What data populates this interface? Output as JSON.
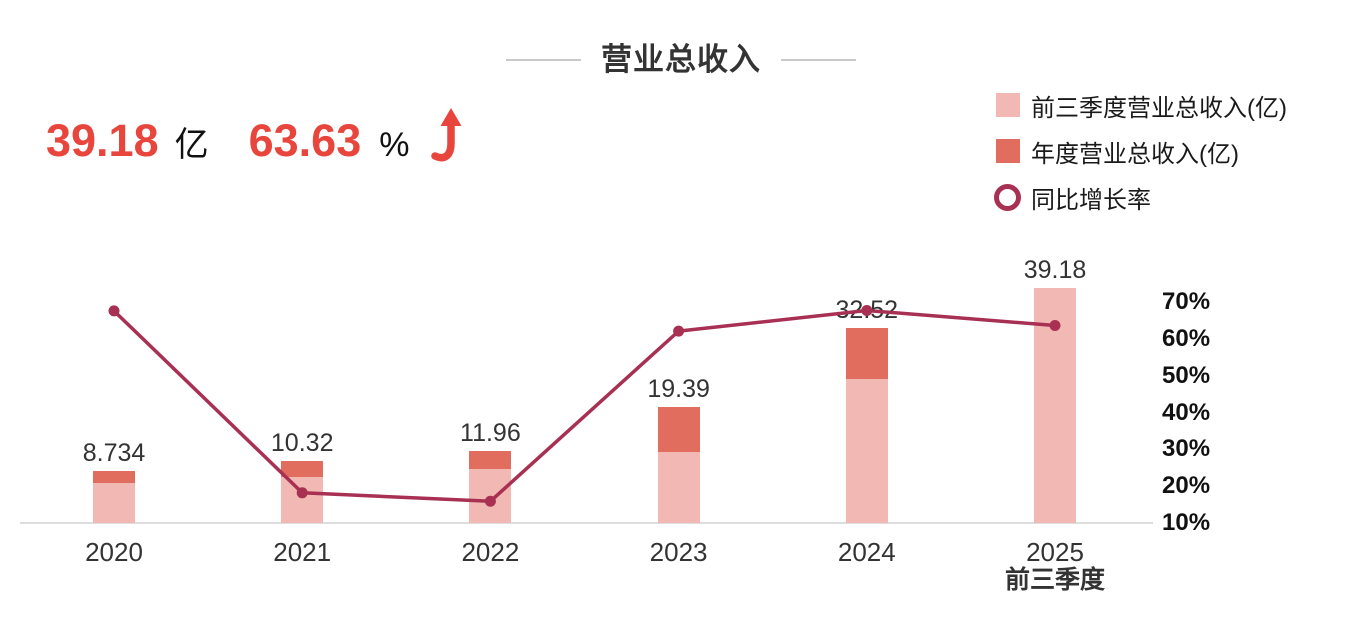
{
  "header": {
    "title": "营业总收入"
  },
  "kpi": {
    "revenue_value": "39.18",
    "revenue_unit": "亿",
    "growth_value": "63.63",
    "growth_unit": "%",
    "trend_icon": "up-arrow"
  },
  "legend": [
    {
      "label": "前三季度营业总收入(亿)",
      "marker": "square",
      "color": "#F2B8B3"
    },
    {
      "label": "年度营业总收入(亿)",
      "marker": "square",
      "color": "#E06D5E"
    },
    {
      "label": "同比增长率",
      "marker": "ring",
      "color": "#A83053"
    }
  ],
  "chart_data": {
    "type": "bar",
    "subtype": "stacked-bars-with-growth-line",
    "title": "营业总收入",
    "categories": [
      "2020",
      "2021",
      "2022",
      "2023",
      "2024",
      "2025"
    ],
    "category_sublabels": [
      "",
      "",
      "",
      "",
      "",
      "前三季度"
    ],
    "bar_value_labels": [
      "8.734",
      "10.32",
      "11.96",
      "19.39",
      "32.52",
      "39.18"
    ],
    "series": [
      {
        "name": "前三季度营业总收入(亿)",
        "type": "bar",
        "color": "#F2B8B3",
        "values": [
          6.67,
          7.67,
          9.0,
          11.83,
          24.0,
          39.18
        ],
        "estimated_values": true
      },
      {
        "name": "年度营业总收入(亿)",
        "type": "bar",
        "color": "#E06D5E",
        "values": [
          8.734,
          10.32,
          11.96,
          19.39,
          32.52,
          null
        ]
      },
      {
        "name": "同比增长率",
        "type": "line",
        "color": "#A83053",
        "unit": "%",
        "values": [
          67.6,
          18.2,
          15.9,
          62.1,
          67.7,
          63.63
        ],
        "estimated_values": true
      }
    ],
    "right_axis": {
      "tick_labels": [
        "70%",
        "60%",
        "50%",
        "40%",
        "30%",
        "20%",
        "10%"
      ],
      "min": 10,
      "max": 70
    },
    "left_axis": {
      "visible": false
    },
    "grid": false,
    "legend_position": "top-right"
  },
  "colors": {
    "accent_red": "#E8463C",
    "bar_light": "#F2B8B3",
    "bar_dark": "#E06D5E",
    "line": "#A83053",
    "axis_line": "#DDDDDD",
    "title_rule": "#C9C9C9"
  }
}
